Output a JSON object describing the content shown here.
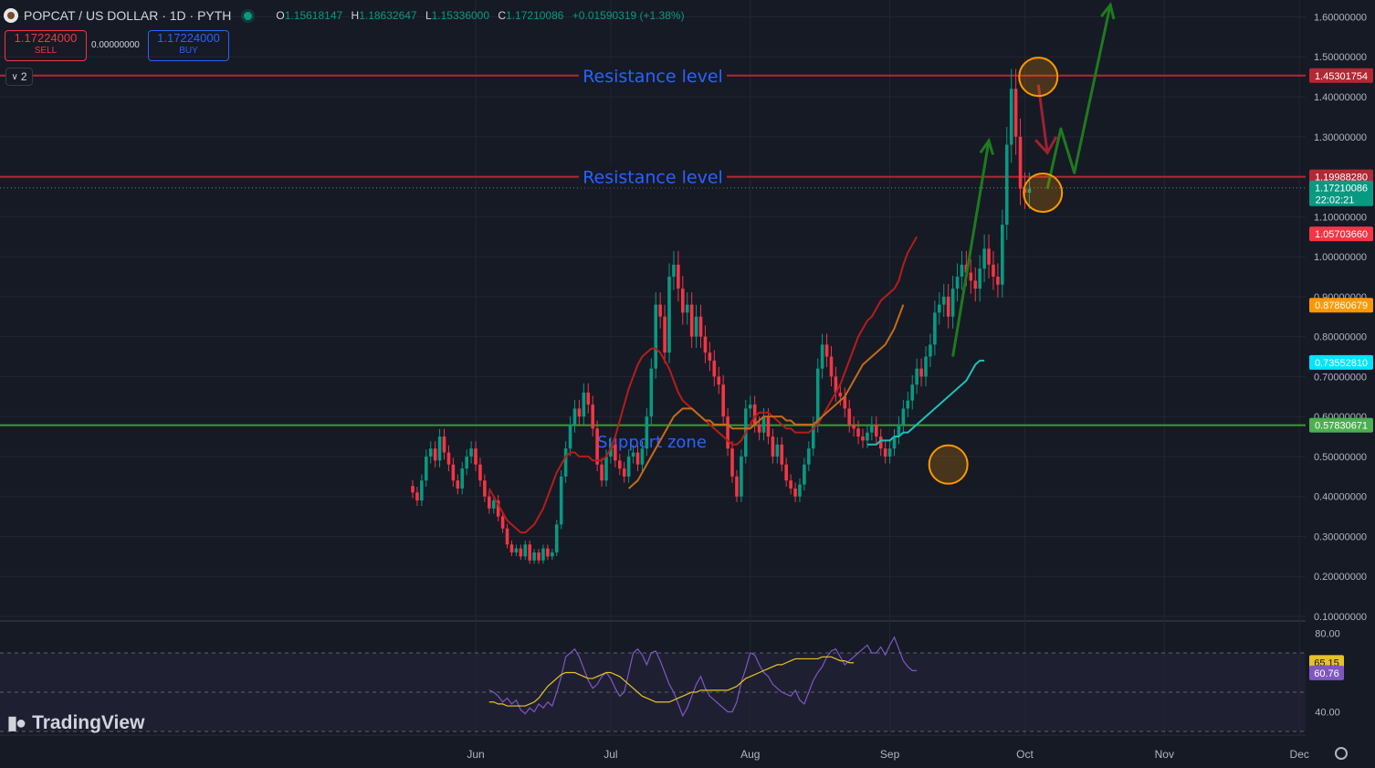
{
  "header": {
    "title": "POPCAT / US DOLLAR · 1D · PYTH",
    "o_label": "O",
    "o": "1.15618147",
    "h_label": "H",
    "h": "1.18632647",
    "l_label": "L",
    "l": "1.15336000",
    "c_label": "C",
    "c": "1.17210086",
    "change": "+0.01590319 (+1.38%)"
  },
  "trade": {
    "sell_price": "1.17224000",
    "sell_label": "SELL",
    "spread": "0.00000000",
    "buy_price": "1.17224000",
    "buy_label": "BUY"
  },
  "indicator_counter": "2",
  "brand": "TradingView",
  "icons": {
    "symbol": "popcat-logo-icon",
    "live": "market-open-dot-icon",
    "counter": "chevron-down-icon",
    "logo": "tradingview-logo-icon",
    "settings": "gear-icon"
  },
  "annotations": {
    "resistance_upper": "Resistance level",
    "resistance_lower": "Resistance level",
    "support": "Support zone"
  },
  "chart_data": {
    "type": "candlestick",
    "price_axis": {
      "min": 0.05,
      "max": 1.65,
      "ticks": [
        "1.60000000",
        "1.50000000",
        "1.40000000",
        "1.30000000",
        "1.10000000",
        "1.00000000",
        "0.90000000",
        "0.80000000",
        "0.70000000",
        "0.60000000",
        "0.50000000",
        "0.40000000",
        "0.30000000",
        "0.20000000",
        "0.10000000"
      ],
      "tick_values": [
        1.6,
        1.5,
        1.4,
        1.3,
        1.1,
        1.0,
        0.9,
        0.8,
        0.7,
        0.6,
        0.5,
        0.4,
        0.3,
        0.2,
        0.1
      ]
    },
    "time_axis": {
      "ticks": [
        "Jun",
        "Jul",
        "Aug",
        "Sep",
        "Oct",
        "Nov",
        "Dec"
      ],
      "tick_days": [
        14,
        44,
        75,
        106,
        136,
        167,
        197
      ]
    },
    "price_labels": [
      {
        "value": 1.45301754,
        "text": "1.45301754",
        "color": "#b22833"
      },
      {
        "value": 1.1998828,
        "text": "1.19988280",
        "color": "#b22833"
      },
      {
        "value": 1.17210086,
        "text": "1.17210086",
        "sub": "22:02:21",
        "color": "#089981"
      },
      {
        "value": 1.0570366,
        "text": "1.05703660",
        "color": "#f23645"
      },
      {
        "value": 0.87860679,
        "text": "0.87860679",
        "color": "#ff9800"
      },
      {
        "value": 0.7355281,
        "text": "0.73552810",
        "color": "#00e5ff"
      },
      {
        "value": 0.57830671,
        "text": "0.57830671",
        "color": "#4caf50"
      }
    ],
    "horizontal_lines": [
      {
        "value": 1.45301754,
        "color": "#b22833"
      },
      {
        "value": 1.1998828,
        "color": "#b22833"
      },
      {
        "value": 0.57830671,
        "color": "#3e9b2c"
      }
    ],
    "series_close": [
      0.41,
      0.39,
      0.44,
      0.5,
      0.52,
      0.49,
      0.55,
      0.51,
      0.48,
      0.44,
      0.42,
      0.47,
      0.5,
      0.52,
      0.48,
      0.44,
      0.4,
      0.37,
      0.39,
      0.35,
      0.32,
      0.28,
      0.26,
      0.27,
      0.25,
      0.28,
      0.24,
      0.26,
      0.24,
      0.27,
      0.25,
      0.26,
      0.33,
      0.45,
      0.52,
      0.58,
      0.62,
      0.6,
      0.66,
      0.63,
      0.57,
      0.48,
      0.44,
      0.5,
      0.53,
      0.49,
      0.47,
      0.45,
      0.5,
      0.51,
      0.48,
      0.52,
      0.6,
      0.72,
      0.88,
      0.85,
      0.76,
      0.95,
      0.98,
      0.92,
      0.86,
      0.88,
      0.8,
      0.85,
      0.8,
      0.76,
      0.74,
      0.7,
      0.68,
      0.6,
      0.52,
      0.45,
      0.4,
      0.5,
      0.62,
      0.63,
      0.58,
      0.56,
      0.6,
      0.55,
      0.5,
      0.53,
      0.48,
      0.44,
      0.42,
      0.4,
      0.43,
      0.48,
      0.52,
      0.58,
      0.72,
      0.78,
      0.75,
      0.7,
      0.66,
      0.65,
      0.62,
      0.58,
      0.57,
      0.55,
      0.54,
      0.56,
      0.58,
      0.55,
      0.52,
      0.5,
      0.52,
      0.55,
      0.58,
      0.62,
      0.64,
      0.68,
      0.72,
      0.7,
      0.75,
      0.78,
      0.86,
      0.88,
      0.9,
      0.85,
      0.92,
      0.95,
      0.98,
      0.96,
      0.94,
      0.92,
      0.97,
      1.02,
      0.98,
      0.95,
      0.93,
      1.08,
      1.28,
      1.42,
      1.3,
      1.17,
      1.16,
      1.17
    ],
    "ma_red": {
      "start": 17,
      "values": [
        0.42,
        0.4,
        0.38,
        0.36,
        0.34,
        0.33,
        0.32,
        0.31,
        0.31,
        0.32,
        0.33,
        0.35,
        0.37,
        0.4,
        0.43,
        0.46,
        0.48,
        0.5,
        0.51,
        0.51,
        0.5,
        0.5,
        0.5,
        0.49,
        0.49,
        0.49,
        0.5,
        0.52,
        0.55,
        0.59,
        0.63,
        0.67,
        0.7,
        0.73,
        0.75,
        0.76,
        0.77,
        0.77,
        0.76,
        0.74,
        0.72,
        0.69,
        0.66,
        0.64,
        0.63,
        0.62,
        0.61,
        0.6,
        0.59,
        0.58,
        0.57,
        0.56,
        0.55,
        0.54,
        0.53,
        0.53,
        0.54,
        0.56,
        0.58,
        0.6,
        0.61,
        0.61,
        0.61,
        0.6,
        0.59,
        0.58,
        0.57,
        0.57,
        0.56,
        0.56,
        0.56,
        0.56,
        0.57,
        0.58,
        0.6,
        0.62,
        0.64,
        0.66,
        0.68,
        0.71,
        0.74,
        0.77,
        0.8,
        0.82,
        0.84,
        0.85,
        0.87,
        0.89,
        0.9,
        0.91,
        0.92,
        0.94,
        0.98,
        1.01,
        1.03,
        1.05
      ]
    },
    "ma_orange": {
      "start": 48,
      "values": [
        0.42,
        0.43,
        0.44,
        0.46,
        0.48,
        0.5,
        0.52,
        0.54,
        0.56,
        0.58,
        0.6,
        0.61,
        0.62,
        0.62,
        0.62,
        0.61,
        0.6,
        0.59,
        0.59,
        0.58,
        0.58,
        0.58,
        0.58,
        0.57,
        0.57,
        0.57,
        0.57,
        0.57,
        0.58,
        0.59,
        0.6,
        0.6,
        0.6,
        0.6,
        0.6,
        0.59,
        0.59,
        0.58,
        0.58,
        0.58,
        0.58,
        0.58,
        0.59,
        0.6,
        0.61,
        0.62,
        0.63,
        0.64,
        0.65,
        0.67,
        0.69,
        0.71,
        0.73,
        0.74,
        0.75,
        0.76,
        0.77,
        0.78,
        0.8,
        0.82,
        0.85,
        0.88
      ]
    },
    "ma_cyan": {
      "start": 101,
      "values": [
        0.53,
        0.53,
        0.53,
        0.54,
        0.54,
        0.54,
        0.55,
        0.55,
        0.56,
        0.56,
        0.57,
        0.58,
        0.59,
        0.6,
        0.61,
        0.62,
        0.63,
        0.64,
        0.65,
        0.66,
        0.67,
        0.68,
        0.69,
        0.71,
        0.73,
        0.74,
        0.74
      ]
    },
    "rsi": {
      "levels": [
        70,
        50,
        30
      ],
      "min_level_label": "40.00",
      "max_level_label": "80.00",
      "label_values": [
        80,
        40
      ],
      "rsi_now": "60.76",
      "rsi_ma_now": "65.15",
      "rsi_color": "#7e57c2",
      "ma_color": "#e6c229",
      "start": 17,
      "values": [
        51,
        50,
        48,
        45,
        47,
        44,
        46,
        41,
        39,
        42,
        40,
        44,
        42,
        45,
        43,
        50,
        58,
        68,
        70,
        72,
        68,
        62,
        56,
        52,
        54,
        58,
        60,
        57,
        52,
        48,
        50,
        60,
        70,
        72,
        69,
        64,
        70,
        71,
        66,
        60,
        54,
        50,
        44,
        38,
        42,
        48,
        54,
        58,
        52,
        48,
        46,
        44,
        42,
        40,
        40,
        45,
        55,
        62,
        70,
        69,
        64,
        60,
        58,
        54,
        52,
        50,
        49,
        48,
        51,
        46,
        44,
        50,
        56,
        60,
        63,
        68,
        71,
        72,
        68,
        64,
        66,
        68,
        70,
        72,
        74,
        70,
        70,
        73,
        69,
        74,
        78,
        72,
        66,
        63,
        61,
        61
      ]
    },
    "rsi_ma": {
      "start": 17,
      "values": [
        45,
        45,
        44,
        44,
        43,
        43,
        43,
        43,
        43,
        44,
        45,
        47,
        50,
        53,
        55,
        57,
        59,
        60,
        60,
        60,
        59,
        58,
        57,
        57,
        58,
        59,
        60,
        60,
        59,
        58,
        56,
        54,
        52,
        50,
        48,
        47,
        46,
        45,
        45,
        45,
        45,
        46,
        47,
        48,
        49,
        50,
        50,
        51,
        51,
        51,
        51,
        51,
        51,
        51,
        52,
        53,
        55,
        57,
        58,
        59,
        60,
        61,
        62,
        63,
        64,
        64,
        65,
        66,
        67,
        67,
        67,
        67,
        67,
        67,
        68,
        68,
        68,
        67,
        66,
        66,
        65,
        65
      ]
    },
    "drawings": {
      "green_arrow_1": [
        [
          120,
          0.75
        ],
        [
          128,
          1.29
        ]
      ],
      "green_path": [
        [
          141,
          1.17
        ],
        [
          144,
          1.32
        ],
        [
          147,
          1.21
        ],
        [
          155,
          1.63
        ]
      ],
      "red_arrow": [
        [
          139,
          1.43
        ],
        [
          141,
          1.26
        ],
        [
          143,
          1.3
        ]
      ],
      "circles": [
        [
          139,
          1.45
        ],
        [
          140,
          1.16
        ],
        [
          119,
          0.48
        ]
      ]
    }
  }
}
